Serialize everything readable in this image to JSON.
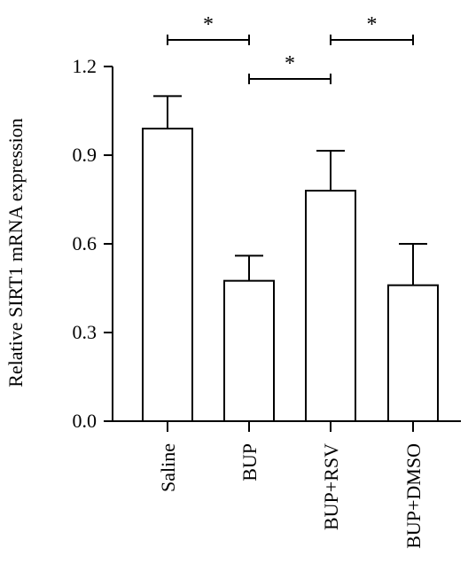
{
  "chart_data": {
    "type": "bar",
    "title": "",
    "xlabel": "",
    "ylabel": "Relative SIRT1 mRNA expression",
    "categories": [
      "Saline",
      "BUP",
      "BUP+RSV",
      "BUP+DMSO"
    ],
    "values": [
      0.99,
      0.475,
      0.78,
      0.46
    ],
    "errors": [
      0.11,
      0.085,
      0.135,
      0.14
    ],
    "ylim": [
      0,
      1.2
    ],
    "yticks": [
      "0.0",
      "0.3",
      "0.6",
      "0.9",
      "1.2"
    ],
    "grid": false,
    "significance": [
      {
        "from": 0,
        "to": 1,
        "label": "*"
      },
      {
        "from": 1,
        "to": 2,
        "label": "*"
      },
      {
        "from": 2,
        "to": 3,
        "label": "*"
      }
    ]
  }
}
